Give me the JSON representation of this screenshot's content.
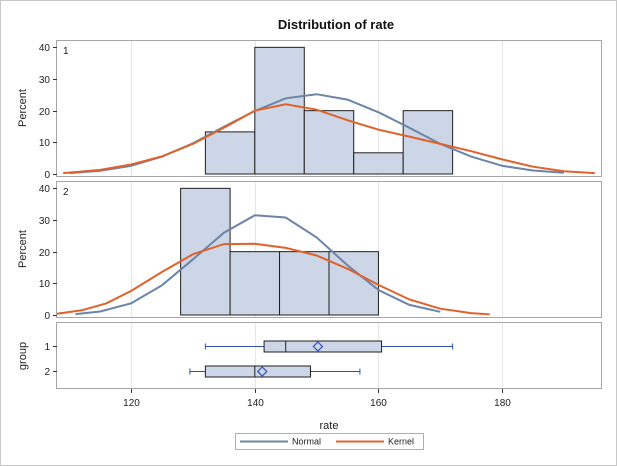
{
  "chart_data": {
    "type": "bar",
    "title": "Distribution of rate",
    "xlabel": "rate",
    "ylabel": "Percent",
    "xlim": [
      108,
      196
    ],
    "x_ticks": [
      120,
      140,
      160,
      180
    ],
    "ylim": [
      0,
      42
    ],
    "y_ticks": [
      0,
      10,
      20,
      30,
      40
    ],
    "grid": true,
    "colors": {
      "bar_fill": "#cdd6e6",
      "normal": "#6b84a8",
      "kernel": "#e0622a",
      "box_mean": "#3050b0"
    },
    "panels": [
      {
        "label": "1",
        "bins": [
          {
            "x0": 132,
            "x1": 140,
            "percent": 13.3
          },
          {
            "x0": 140,
            "x1": 148,
            "percent": 40
          },
          {
            "x0": 148,
            "x1": 156,
            "percent": 20
          },
          {
            "x0": 156,
            "x1": 164,
            "percent": 6.7
          },
          {
            "x0": 164,
            "x1": 172,
            "percent": 20
          }
        ],
        "normal": {
          "x": [
            110,
            115,
            120,
            125,
            130,
            135,
            140,
            145,
            150,
            155,
            160,
            165,
            170,
            175,
            180,
            185,
            190
          ],
          "y": [
            0.3,
            1,
            2.6,
            5.5,
            9.7,
            14.9,
            19.9,
            23.9,
            25.2,
            23.5,
            19.5,
            14.6,
            9.5,
            5.5,
            2.6,
            1.1,
            0.4
          ]
        },
        "kernel": {
          "x": [
            109,
            115,
            120,
            125,
            130,
            135,
            140,
            145,
            150,
            155,
            160,
            165,
            170,
            175,
            180,
            185,
            190,
            195
          ],
          "y": [
            0.3,
            1.3,
            3,
            5.6,
            9.5,
            14.6,
            20,
            22,
            20.3,
            17,
            14,
            11.8,
            9.5,
            7.2,
            4.6,
            2.3,
            0.9,
            0.3
          ]
        }
      },
      {
        "label": "2",
        "bins": [
          {
            "x0": 128,
            "x1": 136,
            "percent": 40
          },
          {
            "x0": 136,
            "x1": 144,
            "percent": 20
          },
          {
            "x0": 144,
            "x1": 152,
            "percent": 20
          },
          {
            "x0": 152,
            "x1": 160,
            "percent": 20
          }
        ],
        "normal": {
          "x": [
            111,
            115,
            120,
            125,
            130,
            135,
            140,
            145,
            150,
            155,
            160,
            165,
            170
          ],
          "y": [
            0.3,
            1.1,
            3.7,
            9.4,
            17.6,
            26,
            31.5,
            30.8,
            24.5,
            15.7,
            7.9,
            3.2,
            1
          ]
        },
        "kernel": {
          "x": [
            108,
            112,
            116,
            120,
            125,
            130,
            135,
            140,
            145,
            150,
            155,
            160,
            165,
            170,
            175,
            178
          ],
          "y": [
            0.4,
            1.5,
            3.7,
            7.6,
            13.6,
            19.2,
            22.4,
            22.5,
            21.2,
            18.8,
            14.6,
            9.5,
            4.9,
            2,
            0.6,
            0.2
          ]
        }
      }
    ],
    "box": {
      "ylabel": "group",
      "groups": [
        {
          "label": "1",
          "min": 132,
          "q1": 141.5,
          "median": 145,
          "q3": 160.5,
          "max": 172,
          "mean": 150.2
        },
        {
          "label": "2",
          "min": 129.5,
          "q1": 132,
          "median": 140,
          "q3": 149,
          "max": 157,
          "mean": 141.2
        }
      ]
    },
    "legend": {
      "position": "bottom",
      "entries": [
        "Normal",
        "Kernel"
      ]
    }
  }
}
